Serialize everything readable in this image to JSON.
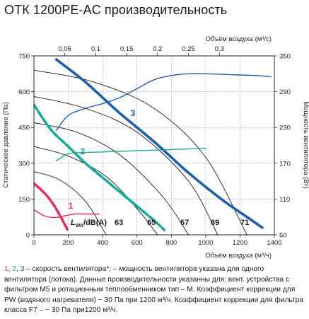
{
  "title": "ОТК 1200PE-AC производительность",
  "chart_data": {
    "type": "line",
    "xlabel_bottom": "Объём воздуха (м³/ч)",
    "xlabel_top": "Объём воздуха (м³/с)",
    "ylabel_left": "Статическое давление (Па)",
    "ylabel_right": "Мощность вентилятора (Вт)",
    "xlim": [
      0,
      1400
    ],
    "ylim_left": [
      0,
      750
    ],
    "ylim_right": [
      50,
      350
    ],
    "x_ticks": [
      "0",
      "200",
      "400",
      "600",
      "800",
      "1000",
      "1200",
      "1400"
    ],
    "x_tick_values": [
      0,
      200,
      400,
      600,
      800,
      1000,
      1200,
      1400
    ],
    "x_top_ticks": [
      "0,05",
      "0,1",
      "0,15",
      "0,2",
      "0,25",
      "0,3"
    ],
    "x_top_tick_values": [
      0.05,
      0.1,
      0.15,
      0.2,
      0.25,
      0.3
    ],
    "y_left_ticks": [
      "0",
      "150",
      "300",
      "450",
      "600",
      "750"
    ],
    "y_left_tick_values": [
      0,
      150,
      300,
      450,
      600,
      750
    ],
    "y_right_ticks": [
      "50",
      "110",
      "170",
      "230",
      "290",
      "350"
    ],
    "y_right_tick_values": [
      50,
      110,
      170,
      230,
      290,
      350
    ],
    "grid": true,
    "series": [
      {
        "name": "1",
        "axis": "left",
        "color": "#e0315a",
        "x": [
          0,
          40,
          80,
          120,
          160,
          200
        ],
        "y": [
          215,
          190,
          160,
          120,
          70,
          15
        ]
      },
      {
        "name": "2",
        "axis": "left",
        "color": "#19a99a",
        "x": [
          0,
          100,
          200,
          300,
          400,
          500,
          600,
          700,
          760
        ],
        "y": [
          545,
          440,
          370,
          300,
          240,
          180,
          120,
          60,
          20
        ]
      },
      {
        "name": "3",
        "axis": "left",
        "color": "#1d5fa8",
        "x": [
          130,
          300,
          500,
          700,
          900,
          1100,
          1250,
          1330
        ],
        "y": [
          735,
          640,
          510,
          390,
          260,
          145,
          70,
          30
        ]
      },
      {
        "name": "1",
        "axis": "right",
        "color": "#e0315a",
        "x": [
          0,
          60,
          120,
          180,
          240,
          280,
          320,
          380
        ],
        "y": [
          92,
          82,
          79,
          82,
          85,
          85,
          85,
          85
        ]
      },
      {
        "name": "2",
        "axis": "right",
        "color": "#19a99a",
        "x": [
          130,
          200,
          300,
          400,
          500,
          600,
          700,
          800,
          900,
          1000
        ],
        "y": [
          174,
          186,
          188,
          189,
          190,
          191,
          192,
          193,
          194,
          195
        ]
      },
      {
        "name": "3",
        "axis": "right",
        "color": "#1d5fa8",
        "x": [
          130,
          200,
          300,
          400,
          500,
          600,
          700,
          800,
          900,
          1000,
          1100,
          1200,
          1300,
          1380
        ],
        "y": [
          225,
          250,
          262,
          270,
          280,
          295,
          310,
          317,
          320,
          320,
          319,
          318,
          317,
          315
        ]
      }
    ],
    "noise_label": "L",
    "noise_label_sub": "WA",
    "noise_label_tail": "/dB(A)",
    "noise_levels": [
      {
        "label": "63",
        "x": [
          0,
          150,
          300,
          420
        ],
        "y": [
          265,
          230,
          140,
          0
        ]
      },
      {
        "label": "65",
        "x": [
          0,
          200,
          420,
          600,
          720
        ],
        "y": [
          370,
          330,
          245,
          110,
          0
        ]
      },
      {
        "label": "67",
        "x": [
          0,
          250,
          500,
          750,
          900
        ],
        "y": [
          470,
          430,
          335,
          160,
          0
        ]
      },
      {
        "label": "69",
        "x": [
          0,
          300,
          600,
          900,
          1070
        ],
        "y": [
          580,
          530,
          430,
          225,
          0
        ]
      },
      {
        "label": "71",
        "x": [
          0,
          350,
          700,
          1000,
          1240
        ],
        "y": [
          690,
          640,
          530,
          325,
          0
        ]
      }
    ]
  },
  "caption": {
    "n1": "1",
    "sep1": ", ",
    "n2": "2",
    "sep2": ", ",
    "n3": "3",
    "text": " – скорость вентилятора*; – мощность вентилятора указана для одного вентилятора (потока). Данные производительности указанны для: вент. устройства с фильтром M5 и ротационным теплообменником тип – М. Коэффициент коррекции для PW (водяного нагревателя) ~ 30 Па при 1200 м³/ч. Коэффициент коррекции для фильтра класса F7 – ~ 30 Па при1200 м³/ч."
  }
}
